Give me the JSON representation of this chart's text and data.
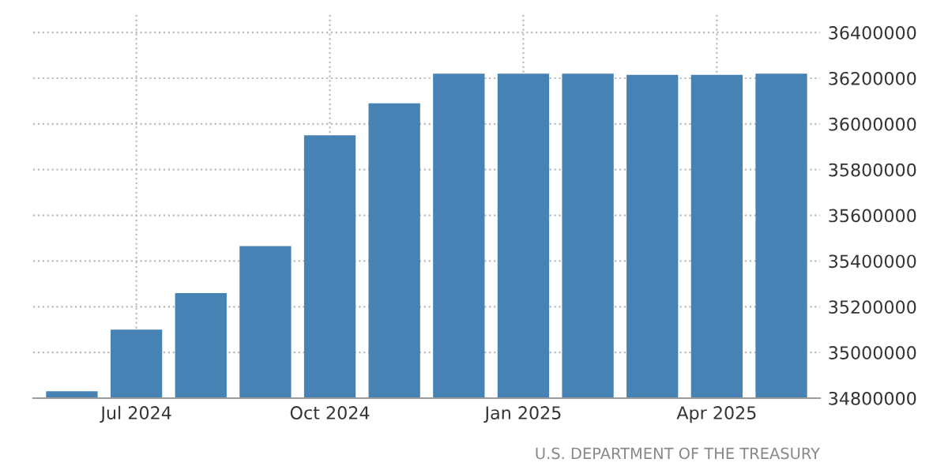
{
  "chart_data": {
    "type": "bar",
    "categories": [
      null,
      "Jul 2024",
      null,
      null,
      "Oct 2024",
      null,
      null,
      "Jan 2025",
      null,
      null,
      "Apr 2025",
      null
    ],
    "values": [
      34830000,
      35100000,
      35260000,
      35465000,
      35950000,
      36090000,
      36220000,
      36220000,
      36220000,
      36215000,
      36215000,
      36220000
    ],
    "color": "#4682b4",
    "ylim": [
      34800000,
      36480000
    ],
    "yticks": [
      34800000,
      35000000,
      35200000,
      35400000,
      35600000,
      35800000,
      36000000,
      36200000,
      36400000
    ],
    "grid": true,
    "annotations": [
      "U.S. DEPARTMENT OF THE TREASURY"
    ]
  }
}
